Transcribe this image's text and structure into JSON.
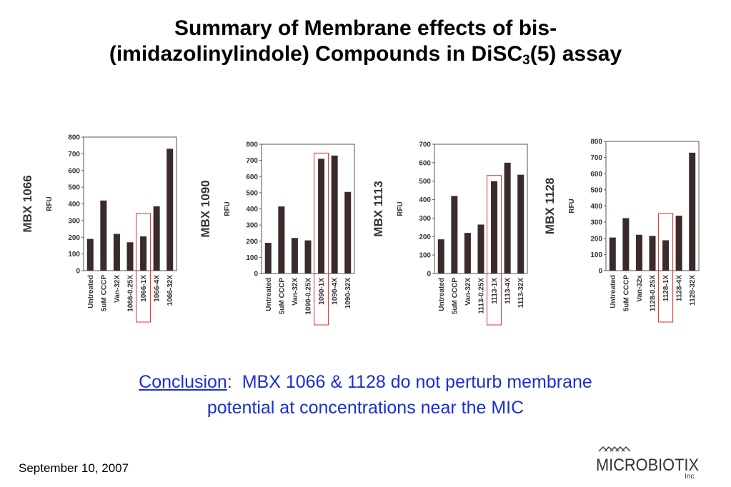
{
  "title": {
    "line1": "Summary of Membrane effects of bis-",
    "line2_main": "(imidazolinylindole) Compounds in DiSC",
    "line2_sub": "3",
    "line2_end": "(5) assay"
  },
  "conclusion": {
    "label": "Conclusion",
    "sep": ":",
    "text1": "MBX 1066 & 1128 do not perturb membrane",
    "text2": "potential at concentrations near the MIC"
  },
  "footer": {
    "date": "September 10, 2007"
  },
  "logo": {
    "name": "MICROBIOTIX",
    "suffix": "Inc."
  },
  "colors": {
    "bar": "#3a2a2a",
    "highlight": "#e0302a",
    "conclusion": "#1a2fd6"
  },
  "chart_data": [
    {
      "type": "bar",
      "title": "MBX 1066",
      "ylabel": "RFU",
      "ylim": [
        0,
        800
      ],
      "yticks": [
        0,
        100,
        200,
        300,
        400,
        500,
        600,
        700,
        800
      ],
      "categories": [
        "Untreated",
        "5uM CCCP",
        "Van-32X",
        "1066-0.25X",
        "1066-1X",
        "1066-4X",
        "1066-32X"
      ],
      "values": [
        190,
        420,
        220,
        170,
        205,
        385,
        730
      ],
      "highlight": "1066-1X"
    },
    {
      "type": "bar",
      "title": "MBX 1090",
      "ylabel": "RFU",
      "ylim": [
        0,
        800
      ],
      "yticks": [
        0,
        100,
        200,
        300,
        400,
        500,
        600,
        700,
        800
      ],
      "categories": [
        "Untreated",
        "5uM CCCP",
        "Van-32X",
        "1090-0.25X",
        "1090-1X",
        "1090-4X",
        "1090-32X"
      ],
      "values": [
        190,
        415,
        220,
        205,
        710,
        730,
        505
      ],
      "highlight": "1090-1X"
    },
    {
      "type": "bar",
      "title": "MBX 1113",
      "ylabel": "RFU",
      "ylim": [
        0,
        700
      ],
      "yticks": [
        0,
        100,
        200,
        300,
        400,
        500,
        600,
        700
      ],
      "categories": [
        "Untreated",
        "5uM CCCP",
        "Van-32X",
        "1113-0.25X",
        "1113-1X",
        "1113-4X",
        "1113-32X"
      ],
      "values": [
        185,
        420,
        220,
        265,
        500,
        600,
        535
      ],
      "highlight": "1113-1X"
    },
    {
      "type": "bar",
      "title": "MBX 1128",
      "ylabel": "RFU",
      "ylim": [
        0,
        800
      ],
      "yticks": [
        0,
        100,
        200,
        300,
        400,
        500,
        600,
        700,
        800
      ],
      "categories": [
        "Untreated",
        "5uM CCCP",
        "Van-32x",
        "1128-0.25X",
        "1128-1X",
        "1128-4X",
        "1128-32X"
      ],
      "values": [
        205,
        325,
        222,
        215,
        188,
        340,
        730
      ],
      "highlight": "1128-1X"
    }
  ]
}
